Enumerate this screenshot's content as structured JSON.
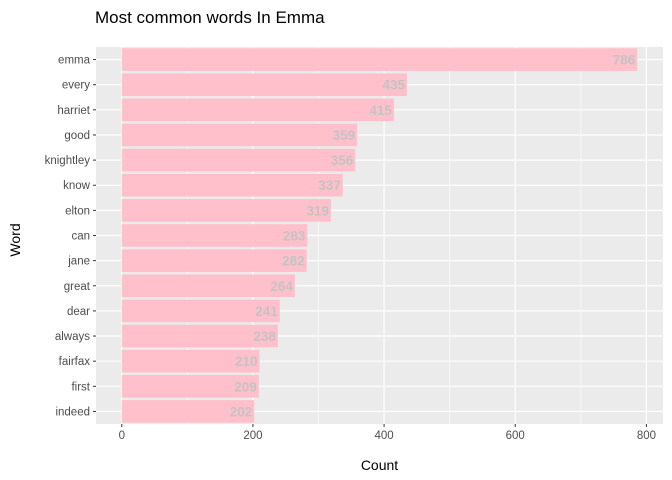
{
  "chart_data": {
    "type": "bar",
    "orientation": "horizontal",
    "title": "Most common words In Emma",
    "xlabel": "Count",
    "ylabel": "Word",
    "categories": [
      "emma",
      "every",
      "harriet",
      "good",
      "knightley",
      "know",
      "elton",
      "can",
      "jane",
      "great",
      "dear",
      "always",
      "fairfax",
      "first",
      "indeed"
    ],
    "values": [
      786,
      435,
      415,
      359,
      356,
      337,
      319,
      283,
      282,
      264,
      241,
      238,
      210,
      209,
      202
    ],
    "xlim": [
      -39.3,
      825.3
    ],
    "xticks": [
      0,
      200,
      400,
      600,
      800
    ],
    "grid": true,
    "legend": "none",
    "colors": {
      "bar": "#ffc0cb",
      "panel": "#ebebeb",
      "grid": "#ffffff",
      "data_label": "#c3c3c3"
    }
  }
}
